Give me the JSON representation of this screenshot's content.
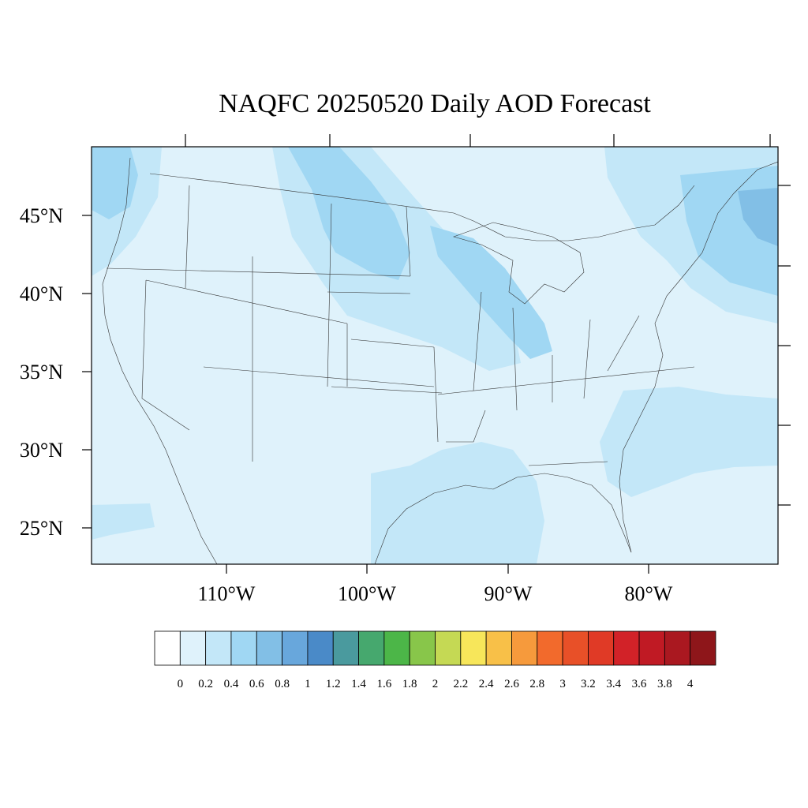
{
  "title": "NAQFC 20250520 Daily AOD Forecast",
  "latitude_labels": [
    "45°N",
    "40°N",
    "35°N",
    "30°N",
    "25°N"
  ],
  "longitude_labels": [
    "110°W",
    "100°W",
    "90°W",
    "80°W"
  ],
  "colorbar": {
    "labels": [
      "0",
      "0.2",
      "0.4",
      "0.6",
      "0.8",
      "1",
      "1.2",
      "1.4",
      "1.6",
      "1.8",
      "2",
      "2.2",
      "2.4",
      "2.6",
      "2.8",
      "3",
      "3.2",
      "3.4",
      "3.6",
      "3.8",
      "4"
    ],
    "colors": [
      "#ffffff",
      "#dff2fb",
      "#c3e7f8",
      "#a0d7f3",
      "#82bfe6",
      "#68a7dc",
      "#4a8ac8",
      "#4a9a9e",
      "#46a86e",
      "#4cb648",
      "#88c64a",
      "#c5d954",
      "#f7e65a",
      "#f8c048",
      "#f69a3c",
      "#f26a2c",
      "#e85028",
      "#e03a26",
      "#d22228",
      "#c01a24",
      "#aa1820",
      "#8e161a"
    ]
  },
  "map": {
    "background_color": "#dff2fb",
    "plume_colors": {
      "light": "#c3e7f8",
      "medium": "#a0d7f3",
      "strong": "#82bfe6"
    }
  }
}
